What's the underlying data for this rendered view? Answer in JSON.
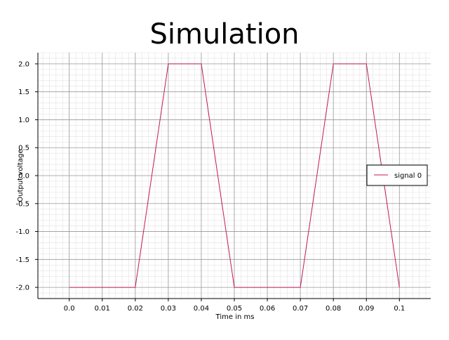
{
  "chart_data": {
    "type": "line",
    "title": "Simulation",
    "xlabel": "Time in ms",
    "ylabel": "Output voltage",
    "xlim": [
      -0.0095,
      0.1095
    ],
    "ylim": [
      -2.2,
      2.2
    ],
    "x_ticks": [
      "0.0",
      "0.01",
      "0.02",
      "0.03",
      "0.04",
      "0.05",
      "0.06",
      "0.07",
      "0.08",
      "0.09",
      "0.1"
    ],
    "y_ticks": [
      "2.0",
      "1.5",
      "1.0",
      "0.5",
      "0.0",
      "-0.5",
      "-1.0",
      "-1.5",
      "-2.0"
    ],
    "grid": true,
    "legend_position": "right",
    "series": [
      {
        "name": "signal 0",
        "color": "#c2185b",
        "x": [
          0.0,
          0.02,
          0.03,
          0.04,
          0.05,
          0.07,
          0.08,
          0.09,
          0.1
        ],
        "y": [
          -2.0,
          -2.0,
          2.0,
          2.0,
          -2.0,
          -2.0,
          2.0,
          2.0,
          -2.0
        ]
      }
    ]
  }
}
